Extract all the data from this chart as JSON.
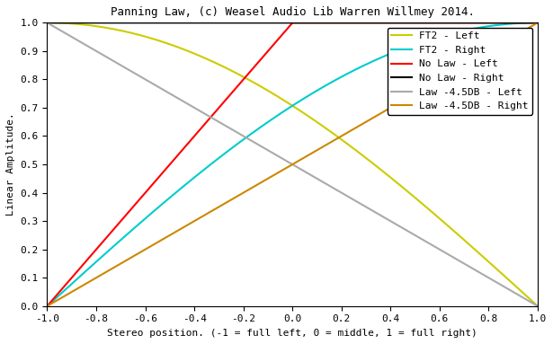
{
  "title": "Panning Law, (c) Weasel Audio Lib Warren Willmey 2014.",
  "xlabel": "Stereo position. (-1 = full left, 0 = middle, 1 = full right)",
  "ylabel": "Linear Amplitude.",
  "xlim": [
    -1.0,
    1.0
  ],
  "ylim": [
    0.0,
    1.0
  ],
  "xticks": [
    -1.0,
    -0.8,
    -0.6,
    -0.4,
    -0.2,
    0.0,
    0.2,
    0.4,
    0.6,
    0.8,
    1.0
  ],
  "yticks": [
    0.0,
    0.1,
    0.2,
    0.3,
    0.4,
    0.5,
    0.6,
    0.7,
    0.8,
    0.9,
    1.0
  ],
  "legend_entries": [
    "FT2 - Left",
    "FT2 - Right",
    "No Law - Left",
    "No Law - Right",
    "Law -4.5DB - Left",
    "Law -4.5DB - Right"
  ],
  "colors": {
    "ft2_left": "#cccc00",
    "ft2_right": "#00cccc",
    "no_law_left": "#ff0000",
    "no_law_right": "#000000",
    "law_left": "#aaaaaa",
    "law_right": "#cc8800"
  },
  "background_color": "#ffffff"
}
